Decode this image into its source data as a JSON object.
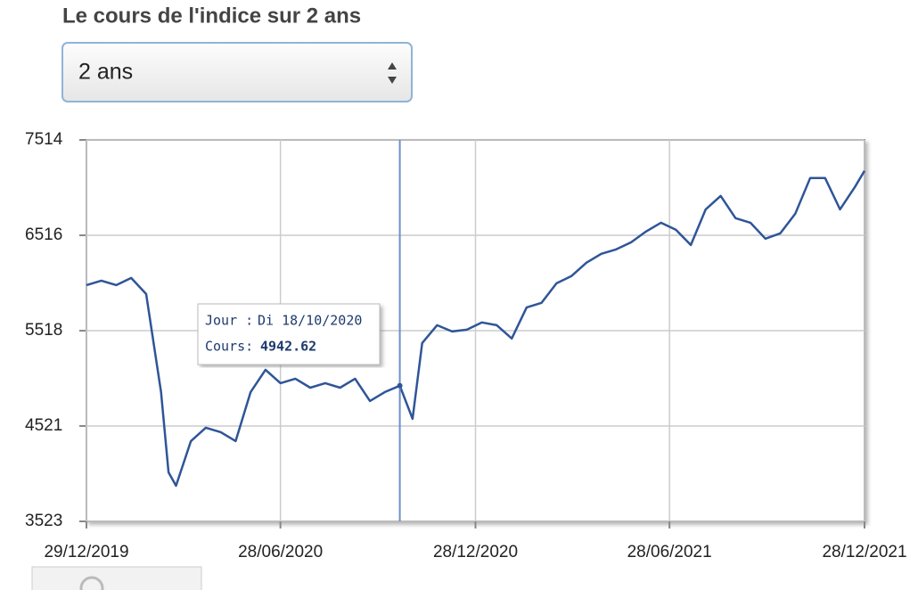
{
  "title": "Le cours de l'indice sur 2 ans",
  "select": {
    "value": "2 ans"
  },
  "chart_data": {
    "type": "line",
    "color": "#2f5597",
    "x": [
      "2019-12-29",
      "2020-01-12",
      "2020-01-26",
      "2020-02-09",
      "2020-02-23",
      "2020-03-08",
      "2020-03-15",
      "2020-03-22",
      "2020-04-05",
      "2020-04-19",
      "2020-05-03",
      "2020-05-17",
      "2020-05-31",
      "2020-06-14",
      "2020-06-28",
      "2020-07-12",
      "2020-07-26",
      "2020-08-09",
      "2020-08-23",
      "2020-09-06",
      "2020-09-20",
      "2020-10-04",
      "2020-10-18",
      "2020-10-30",
      "2020-11-08",
      "2020-11-22",
      "2020-12-06",
      "2020-12-20",
      "2021-01-03",
      "2021-01-17",
      "2021-01-31",
      "2021-02-14",
      "2021-02-28",
      "2021-03-14",
      "2021-03-28",
      "2021-04-11",
      "2021-04-25",
      "2021-05-09",
      "2021-05-23",
      "2021-06-06",
      "2021-06-20",
      "2021-07-04",
      "2021-07-18",
      "2021-08-01",
      "2021-08-15",
      "2021-08-29",
      "2021-09-12",
      "2021-09-26",
      "2021-10-10",
      "2021-10-24",
      "2021-11-07",
      "2021-11-21",
      "2021-12-05",
      "2021-12-19",
      "2021-12-28"
    ],
    "values": [
      5995,
      6042,
      5995,
      6070,
      5902,
      4876,
      4036,
      3896,
      4363,
      4503,
      4456,
      4363,
      4876,
      5109,
      4969,
      5016,
      4922,
      4969,
      4922,
      5016,
      4783,
      4876,
      4942.62,
      4596,
      5389,
      5575,
      5510,
      5529,
      5604,
      5575,
      5436,
      5762,
      5809,
      6014,
      6089,
      6229,
      6322,
      6369,
      6443,
      6555,
      6648,
      6574,
      6415,
      6788,
      6928,
      6695,
      6648,
      6481,
      6537,
      6742,
      7115,
      7115,
      6788,
      7022,
      7190
    ],
    "xlim": [
      "2019-12-29",
      "2021-12-28"
    ],
    "xticks": [
      {
        "value": "2019-12-29",
        "label": "29/12/2019"
      },
      {
        "value": "2020-06-28",
        "label": "28/06/2020"
      },
      {
        "value": "2020-12-28",
        "label": "28/12/2020"
      },
      {
        "value": "2021-06-28",
        "label": "28/06/2021"
      },
      {
        "value": "2021-12-28",
        "label": "28/12/2021"
      }
    ],
    "ylim": [
      3523,
      7514
    ],
    "yticks": [
      3523,
      4521,
      5518,
      6516,
      7514
    ],
    "grid": true,
    "tooltip": {
      "x": "2020-10-18",
      "day_label": "Jour :",
      "day": "Di 18/10/2020",
      "value_label": "Cours:",
      "value": 4942.62
    }
  }
}
